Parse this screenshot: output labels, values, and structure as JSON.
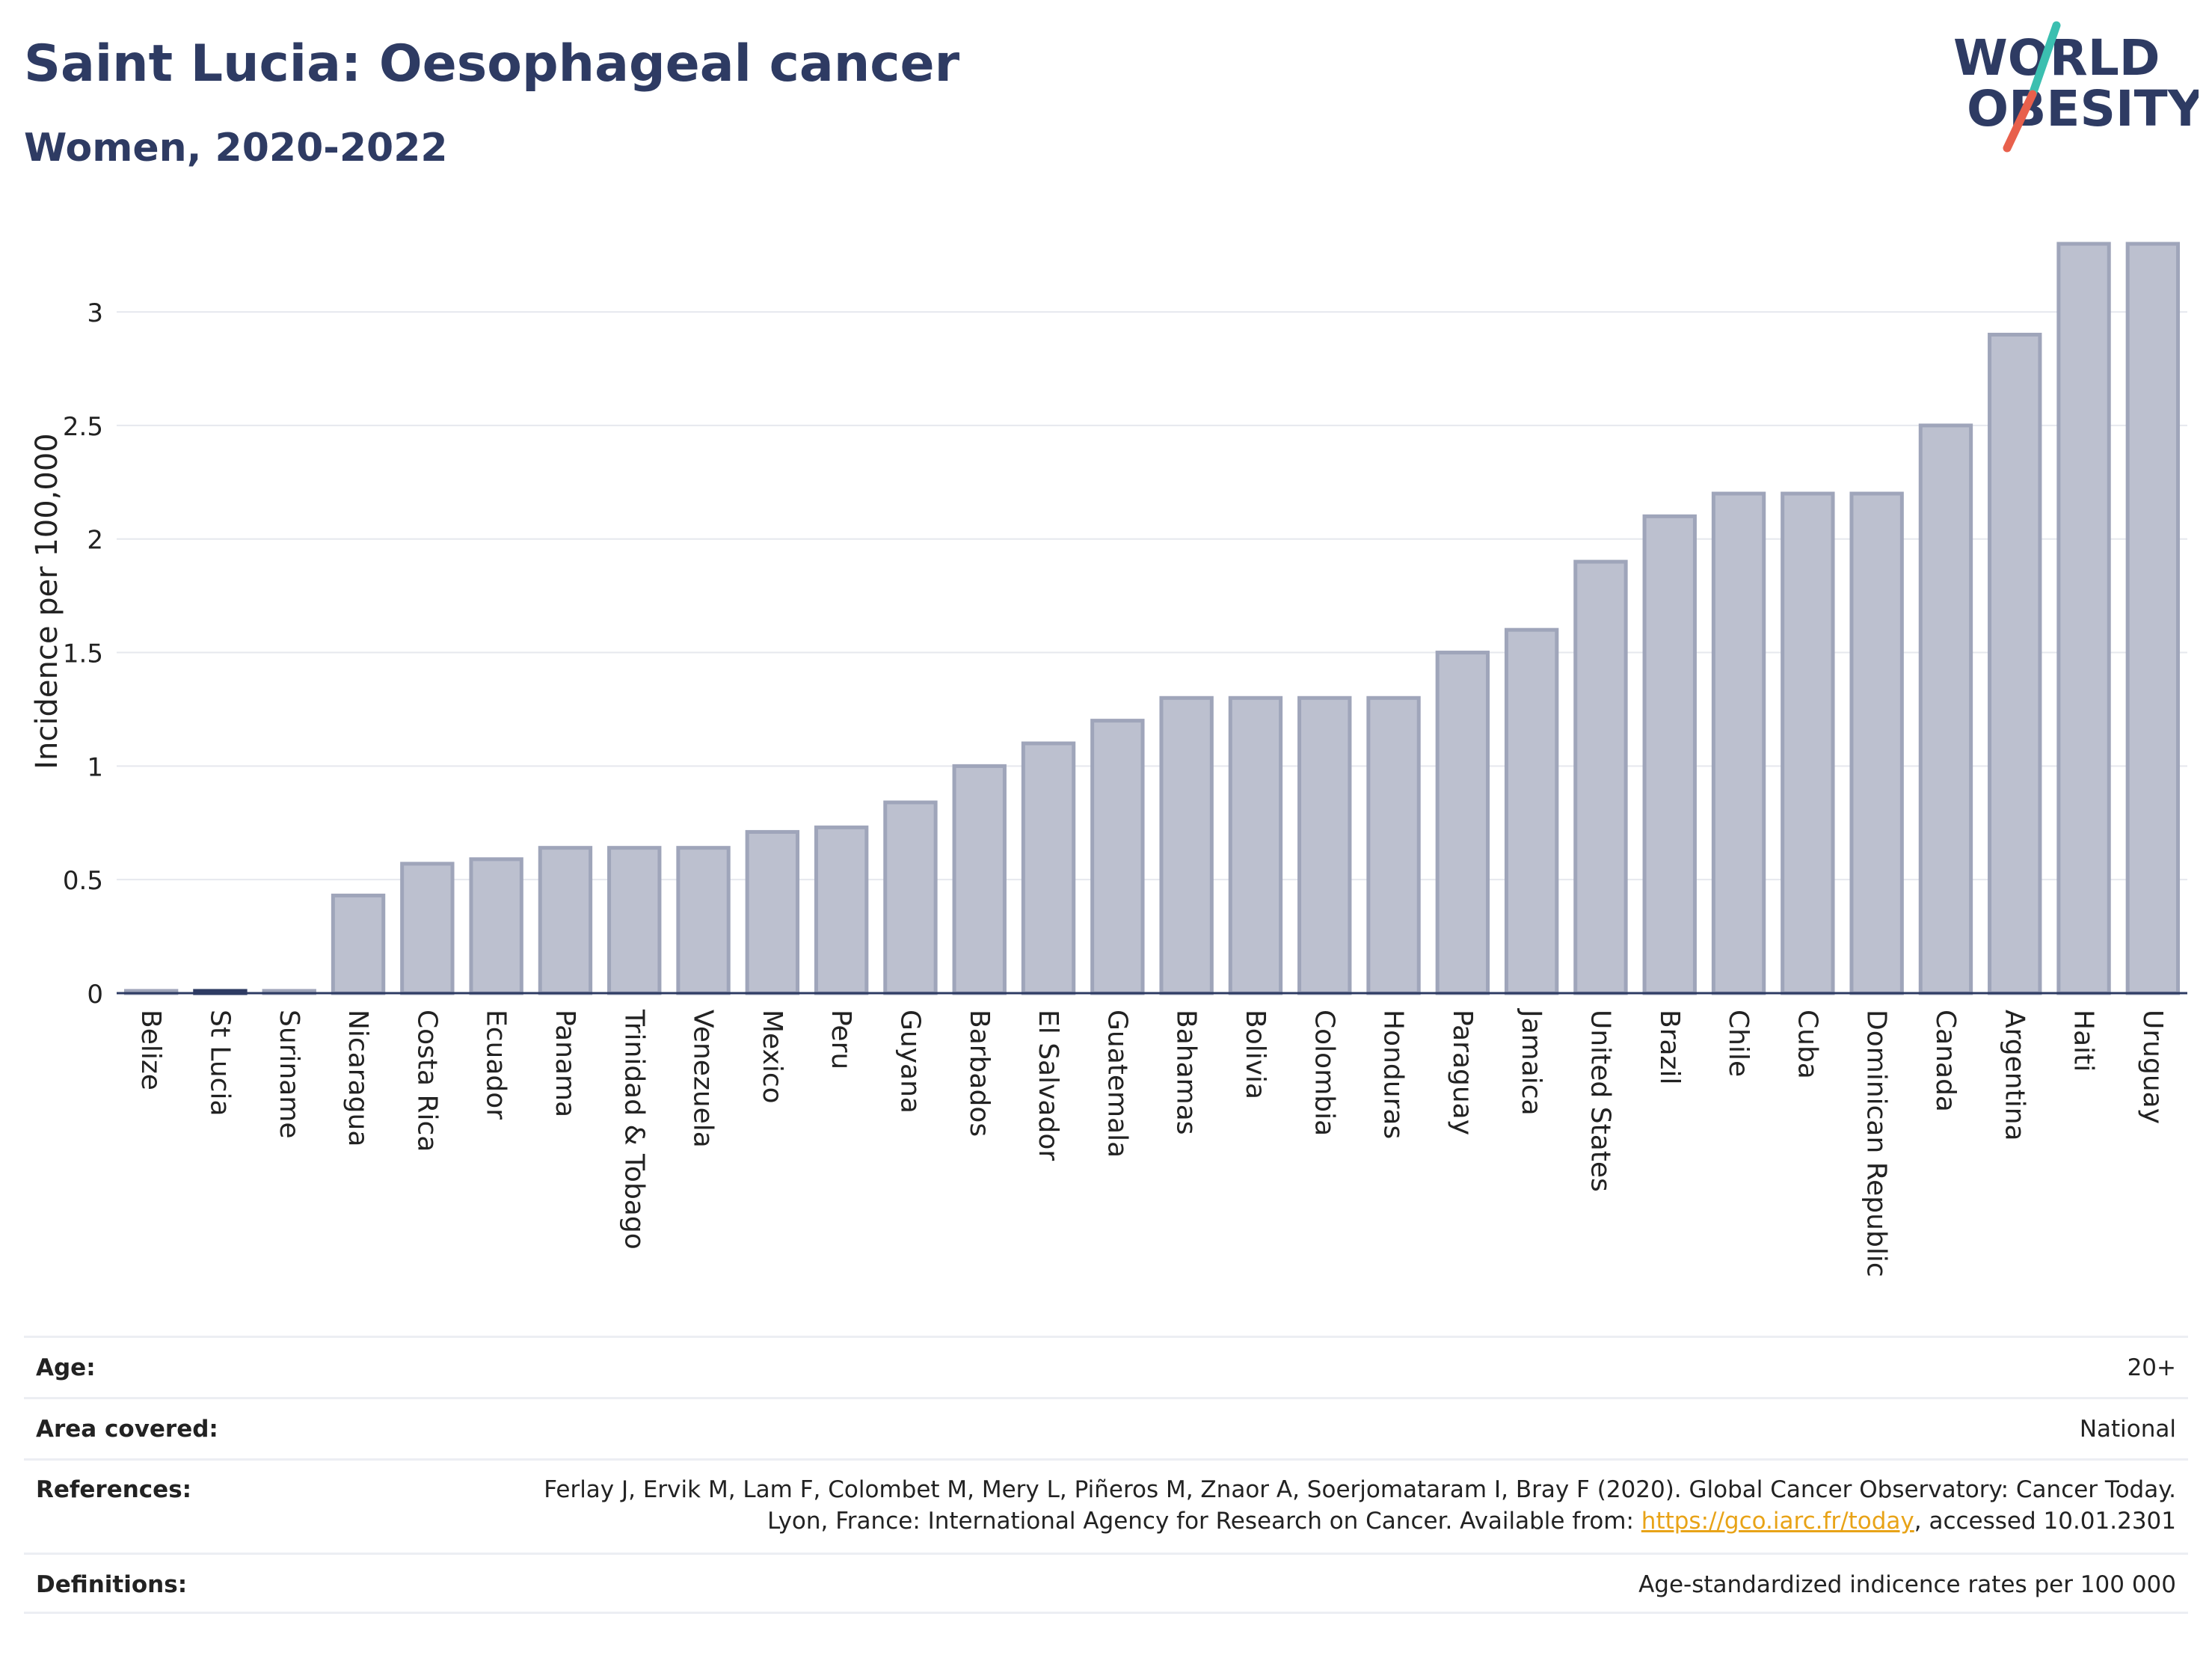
{
  "header": {
    "title": "Saint Lucia: Oesophageal cancer",
    "subtitle": "Women, 2020-2022"
  },
  "logo": {
    "line1": "WORLD",
    "line2": "OBESITY"
  },
  "colors": {
    "title": "#2e3b63",
    "bar_fill": "#bcc0cf",
    "bar_stroke": "#9fa5ba",
    "highlight_bar": "#2e3b63",
    "link": "#e8a317",
    "logo_teal": "#3bbfb0",
    "logo_red": "#e8604c"
  },
  "chart_data": {
    "type": "bar",
    "categories": [
      "Belize",
      "St Lucia",
      "Suriname",
      "Nicaragua",
      "Costa Rica",
      "Ecuador",
      "Panama",
      "Trinidad & Tobago",
      "Venezuela",
      "Mexico",
      "Peru",
      "Guyana",
      "Barbados",
      "El Salvador",
      "Guatemala",
      "Bahamas",
      "Bolivia",
      "Colombia",
      "Honduras",
      "Paraguay",
      "Jamaica",
      "United States",
      "Brazil",
      "Chile",
      "Cuba",
      "Dominican Republic",
      "Canada",
      "Argentina",
      "Haiti",
      "Uruguay"
    ],
    "values": [
      0.01,
      0.01,
      0.01,
      0.43,
      0.57,
      0.59,
      0.64,
      0.64,
      0.64,
      0.71,
      0.73,
      0.84,
      1.0,
      1.1,
      1.2,
      1.3,
      1.3,
      1.3,
      1.3,
      1.5,
      1.6,
      1.9,
      2.1,
      2.2,
      2.2,
      2.2,
      2.5,
      2.9,
      3.3,
      3.3
    ],
    "highlight": "St Lucia",
    "ylabel": "Incidence per 100,000",
    "xlabel": "",
    "ylim": [
      0,
      3.3
    ],
    "yticks": [
      0,
      0.5,
      1,
      1.5,
      2,
      2.5,
      3
    ],
    "ytick_labels": [
      "0",
      "0.5",
      "1",
      "1.5",
      "2",
      "2.5",
      "3"
    ],
    "grid": true,
    "legend": "none"
  },
  "info": {
    "age_label": "Age:",
    "age_value": "20+",
    "area_label": "Area covered:",
    "area_value": "National",
    "references_label": "References:",
    "references_text": "Ferlay J, Ervik M, Lam F, Colombet M, Mery L, Piñeros M, Znaor A, Soerjomataram I, Bray F (2020). Global Cancer Observatory: Cancer Today. Lyon, France: International Agency for Research on Cancer. Available from:",
    "references_link": "https://gco.iarc.fr/today",
    "references_suffix": ", accessed 10.01.2301",
    "definitions_label": "Definitions:",
    "definitions_value": "Age-standardized indicence rates per 100 000"
  }
}
